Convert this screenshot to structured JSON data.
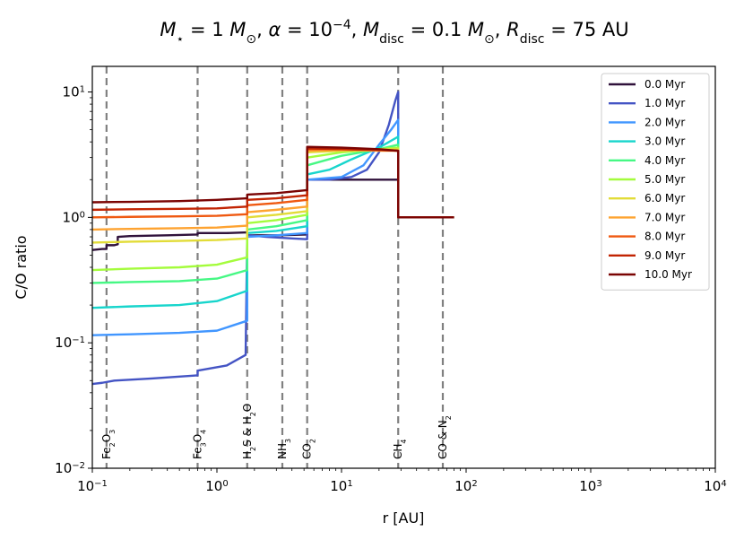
{
  "chart_data": {
    "type": "line",
    "title": {
      "parts": [
        {
          "t": "M",
          "style": "italic"
        },
        {
          "t": "⋆",
          "style": "sub"
        },
        {
          "t": " = 1 "
        },
        {
          "t": "M",
          "style": "italic"
        },
        {
          "t": "⊙",
          "style": "sub"
        },
        {
          "t": ",  "
        },
        {
          "t": "α",
          "style": "italic"
        },
        {
          "t": " = 10"
        },
        {
          "t": "−4",
          "style": "sup"
        },
        {
          "t": ",  "
        },
        {
          "t": "M",
          "style": "italic"
        },
        {
          "t": "disc",
          "style": "sub"
        },
        {
          "t": " = 0.1 "
        },
        {
          "t": "M",
          "style": "italic"
        },
        {
          "t": "⊙",
          "style": "sub"
        },
        {
          "t": ",  "
        },
        {
          "t": "R",
          "style": "italic"
        },
        {
          "t": "disc",
          "style": "sub"
        },
        {
          "t": " = 75 AU"
        }
      ]
    },
    "xlabel": "r [AU]",
    "ylabel": "C/O ratio",
    "xscale": "log",
    "yscale": "log",
    "xlim": [
      0.1,
      10000
    ],
    "ylim": [
      0.01,
      16
    ],
    "x_ticks": [
      {
        "base": "10",
        "exp": "−1",
        "value": 0.1
      },
      {
        "base": "10",
        "exp": "0",
        "value": 1
      },
      {
        "base": "10",
        "exp": "1",
        "value": 10
      },
      {
        "base": "10",
        "exp": "2",
        "value": 100
      },
      {
        "base": "10",
        "exp": "3",
        "value": 1000
      },
      {
        "base": "10",
        "exp": "4",
        "value": 10000
      }
    ],
    "y_ticks": [
      {
        "base": "10",
        "exp": "−2",
        "value": 0.01
      },
      {
        "base": "10",
        "exp": "−1",
        "value": 0.1
      },
      {
        "base": "10",
        "exp": "0",
        "value": 1
      },
      {
        "base": "10",
        "exp": "1",
        "value": 10
      }
    ],
    "grid": false,
    "legend_position": "top-right",
    "snowlines": [
      {
        "r": 0.13,
        "parts": [
          {
            "t": "Fe"
          },
          {
            "t": "2",
            "style": "sub"
          },
          {
            "t": "O"
          },
          {
            "t": "3",
            "style": "sub"
          }
        ]
      },
      {
        "r": 0.7,
        "parts": [
          {
            "t": "Fe"
          },
          {
            "t": "3",
            "style": "sub"
          },
          {
            "t": "O"
          },
          {
            "t": "4",
            "style": "sub"
          }
        ]
      },
      {
        "r": 1.75,
        "parts": [
          {
            "t": "H"
          },
          {
            "t": "2",
            "style": "sub"
          },
          {
            "t": "S & H"
          },
          {
            "t": "2",
            "style": "sub"
          },
          {
            "t": "O"
          }
        ]
      },
      {
        "r": 3.35,
        "parts": [
          {
            "t": "NH"
          },
          {
            "t": "3",
            "style": "sub"
          }
        ]
      },
      {
        "r": 5.3,
        "parts": [
          {
            "t": "CO"
          },
          {
            "t": "2",
            "style": "sub"
          }
        ]
      },
      {
        "r": 28.5,
        "parts": [
          {
            "t": "CH"
          },
          {
            "t": "4",
            "style": "sub"
          }
        ]
      },
      {
        "r": 65,
        "parts": [
          {
            "t": "CO & N"
          },
          {
            "t": "2",
            "style": "sub"
          }
        ]
      }
    ],
    "series": [
      {
        "name": "0.0 Myr",
        "color": "#30123b",
        "x": [
          0.1,
          0.12,
          0.13,
          0.13,
          0.15,
          0.16,
          0.16,
          0.2,
          0.4,
          0.7,
          0.7,
          1.2,
          1.75,
          1.75,
          3.0,
          5.3,
          5.3,
          10,
          20,
          28.5,
          28.5,
          50,
          80
        ],
        "y": [
          0.55,
          0.56,
          0.56,
          0.6,
          0.6,
          0.61,
          0.7,
          0.71,
          0.72,
          0.73,
          0.75,
          0.75,
          0.76,
          0.72,
          0.72,
          0.73,
          2.0,
          2.0,
          2.0,
          2.0,
          1.0,
          1.0,
          1.0
        ]
      },
      {
        "name": "1.0 Myr",
        "color": "#4454c4",
        "x": [
          0.1,
          0.12,
          0.15,
          0.3,
          0.7,
          0.7,
          1.2,
          1.7,
          1.75,
          1.78,
          2.5,
          4.0,
          5.3,
          5.3,
          8,
          12,
          16,
          20,
          24,
          27,
          28.5,
          28.5,
          50,
          80
        ],
        "y": [
          0.047,
          0.048,
          0.05,
          0.052,
          0.055,
          0.06,
          0.066,
          0.08,
          0.7,
          0.72,
          0.7,
          0.68,
          0.67,
          2.0,
          2.0,
          2.1,
          2.4,
          3.3,
          5.5,
          8.5,
          10.0,
          1.0,
          1.0,
          1.0
        ]
      },
      {
        "name": "2.0 Myr",
        "color": "#4196ff",
        "x": [
          0.1,
          0.2,
          0.5,
          1.0,
          1.75,
          1.75,
          3.0,
          5.3,
          5.3,
          10,
          15,
          20,
          25,
          28.5,
          28.5,
          50,
          80
        ],
        "y": [
          0.115,
          0.117,
          0.12,
          0.125,
          0.15,
          0.7,
          0.72,
          0.75,
          2.0,
          2.1,
          2.6,
          3.8,
          5.0,
          6.0,
          1.0,
          1.0,
          1.0
        ]
      },
      {
        "name": "3.0 Myr",
        "color": "#18d5cc",
        "x": [
          0.1,
          0.2,
          0.5,
          1.0,
          1.75,
          1.75,
          3.0,
          5.3,
          5.3,
          8,
          12,
          20,
          28.5,
          28.5,
          50,
          80
        ],
        "y": [
          0.19,
          0.195,
          0.2,
          0.215,
          0.26,
          0.75,
          0.78,
          0.85,
          2.2,
          2.4,
          2.9,
          3.6,
          4.4,
          1.0,
          1.0,
          1.0
        ]
      },
      {
        "name": "4.0 Myr",
        "color": "#46f884",
        "x": [
          0.1,
          0.2,
          0.5,
          1.0,
          1.75,
          1.75,
          3.0,
          5.3,
          5.3,
          10,
          20,
          28.5,
          28.5,
          50,
          80
        ],
        "y": [
          0.3,
          0.305,
          0.31,
          0.325,
          0.38,
          0.8,
          0.85,
          0.95,
          2.6,
          3.1,
          3.5,
          3.8,
          1.0,
          1.0,
          1.0
        ]
      },
      {
        "name": "5.0 Myr",
        "color": "#a4fc3c",
        "x": [
          0.1,
          0.2,
          0.5,
          1.0,
          1.75,
          1.75,
          3.0,
          5.3,
          5.3,
          10,
          20,
          28.5,
          28.5,
          50,
          80
        ],
        "y": [
          0.38,
          0.39,
          0.4,
          0.42,
          0.48,
          0.9,
          0.95,
          1.05,
          3.0,
          3.3,
          3.5,
          3.6,
          1.0,
          1.0,
          1.0
        ]
      },
      {
        "name": "6.0 Myr",
        "color": "#e2dc38",
        "x": [
          0.1,
          0.2,
          0.5,
          1.0,
          1.75,
          1.75,
          3.0,
          5.3,
          5.3,
          10,
          20,
          28.5,
          28.5,
          50,
          80
        ],
        "y": [
          0.63,
          0.64,
          0.65,
          0.66,
          0.68,
          1.0,
          1.05,
          1.12,
          3.3,
          3.4,
          3.5,
          3.5,
          1.0,
          1.0,
          1.0
        ]
      },
      {
        "name": "7.0 Myr",
        "color": "#fea331",
        "x": [
          0.1,
          0.2,
          0.5,
          1.0,
          1.75,
          1.75,
          3.0,
          5.3,
          5.3,
          10,
          20,
          28.5,
          28.5,
          50,
          80
        ],
        "y": [
          0.8,
          0.81,
          0.82,
          0.83,
          0.86,
          1.1,
          1.15,
          1.22,
          3.4,
          3.45,
          3.4,
          3.4,
          1.0,
          1.0,
          1.0
        ]
      },
      {
        "name": "8.0 Myr",
        "color": "#ef5911",
        "x": [
          0.1,
          0.2,
          0.5,
          1.0,
          1.75,
          1.75,
          3.0,
          5.3,
          5.3,
          10,
          20,
          28.5,
          28.5,
          50,
          80
        ],
        "y": [
          1.0,
          1.01,
          1.02,
          1.03,
          1.06,
          1.25,
          1.3,
          1.38,
          3.5,
          3.5,
          3.45,
          3.4,
          1.0,
          1.0,
          1.0
        ]
      },
      {
        "name": "9.0 Myr",
        "color": "#c22403",
        "x": [
          0.1,
          0.2,
          0.5,
          1.0,
          1.75,
          1.75,
          3.0,
          5.3,
          5.3,
          10,
          20,
          28.5,
          28.5,
          50,
          80
        ],
        "y": [
          1.15,
          1.16,
          1.17,
          1.18,
          1.22,
          1.38,
          1.42,
          1.5,
          3.55,
          3.5,
          3.45,
          3.4,
          1.0,
          1.0,
          1.0
        ]
      },
      {
        "name": "10.0 Myr",
        "color": "#7a0403",
        "x": [
          0.1,
          0.2,
          0.5,
          1.0,
          1.75,
          1.75,
          3.0,
          5.3,
          5.3,
          10,
          20,
          28.5,
          28.5,
          50,
          80
        ],
        "y": [
          1.32,
          1.33,
          1.35,
          1.38,
          1.42,
          1.52,
          1.56,
          1.65,
          3.65,
          3.6,
          3.5,
          3.4,
          1.0,
          1.0,
          1.0
        ]
      }
    ]
  }
}
